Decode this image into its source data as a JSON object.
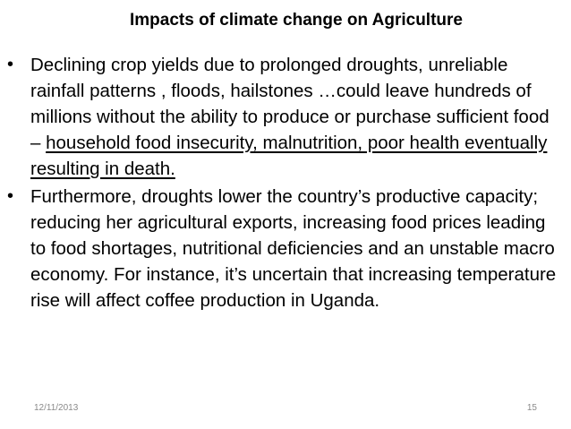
{
  "slide": {
    "title": "Impacts of climate change on Agriculture",
    "bullets": [
      {
        "text": "Declining crop yields due to prolonged droughts, unreliable rainfall patterns , floods, hailstones …could leave hundreds of millions without the ability to produce or purchase sufficient food – ",
        "underlined": "household food insecurity, malnutrition, poor health eventually resulting in death."
      },
      {
        "text": "Furthermore, droughts lower the country’s productive capacity; reducing her agricultural exports, increasing food prices leading to food shortages, nutritional deficiencies and an unstable macro economy. For instance, it’s uncertain that increasing temperature rise will affect coffee production in Uganda."
      }
    ],
    "bullet_symbol": "•",
    "footer": {
      "date": "12/11/2013",
      "page_number": "15"
    }
  }
}
